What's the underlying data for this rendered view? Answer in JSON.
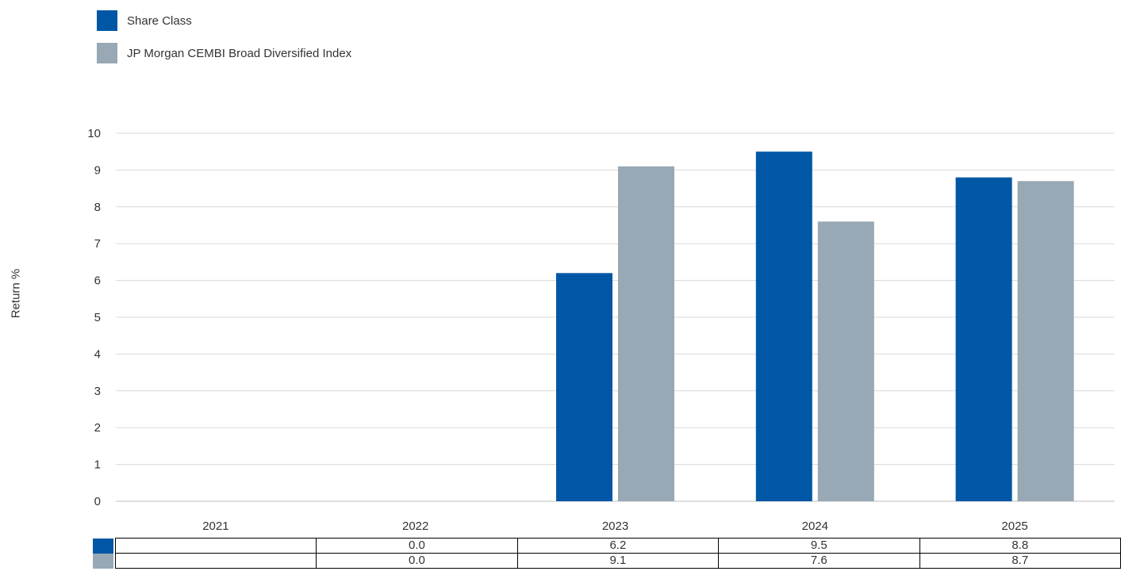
{
  "legend": [
    {
      "label": "Share Class",
      "color": "#0057a5"
    },
    {
      "label": "JP Morgan CEMBI Broad Diversified Index",
      "color": "#98a8b4"
    }
  ],
  "chart_data": {
    "type": "bar",
    "categories": [
      "2021",
      "2022",
      "2023",
      "2024",
      "2025"
    ],
    "series": [
      {
        "name": "Share Class",
        "color": "#0057a5",
        "values": [
          null,
          0.0,
          6.2,
          9.5,
          8.8
        ]
      },
      {
        "name": "JP Morgan CEMBI Broad Diversified Index",
        "color": "#98a8b4",
        "values": [
          null,
          0.0,
          9.1,
          7.6,
          8.7
        ]
      }
    ],
    "ylabel": "Return %",
    "ylim": [
      0,
      10
    ],
    "yticks": [
      "0",
      "1",
      "2",
      "3",
      "4",
      "5",
      "6",
      "7",
      "8",
      "9",
      "10"
    ],
    "grid": true,
    "legend_position": "top-left"
  },
  "table": {
    "rows": [
      {
        "values": [
          "",
          "0.0",
          "6.2",
          "9.5",
          "8.8"
        ]
      },
      {
        "values": [
          "",
          "0.0",
          "9.1",
          "7.6",
          "8.7"
        ]
      }
    ]
  }
}
